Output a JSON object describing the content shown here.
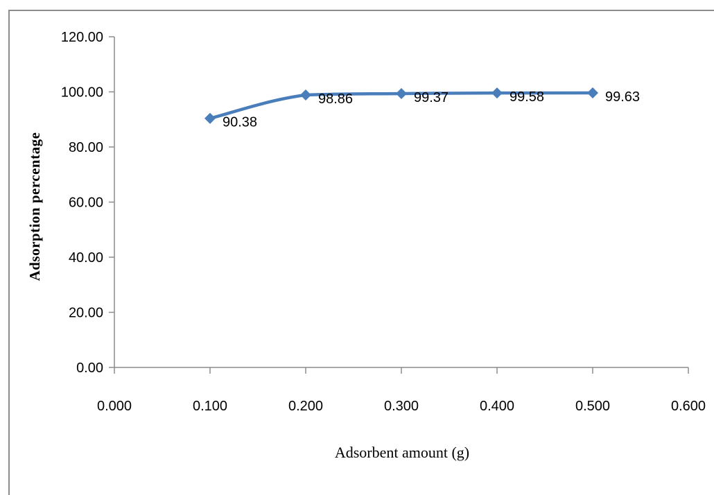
{
  "chart_data": {
    "type": "line",
    "title": "",
    "xlabel": "Adsorbent amount (g)",
    "ylabel": "Adsorption percentage",
    "x": [
      0.1,
      0.2,
      0.3,
      0.4,
      0.5
    ],
    "series": [
      {
        "values": [
          90.38,
          98.86,
          99.37,
          99.58,
          99.63
        ],
        "labels": [
          "90.38",
          "98.86",
          "99.37",
          "99.58",
          "99.63"
        ],
        "color": "#4a7ebb",
        "marker": "diamond",
        "smooth": true
      }
    ],
    "xlim": [
      0,
      0.6
    ],
    "ylim": [
      0,
      120
    ],
    "x_ticks": [
      "0.000",
      "0.100",
      "0.200",
      "0.300",
      "0.400",
      "0.500",
      "0.600"
    ],
    "y_ticks": [
      "0.00",
      "20.00",
      "40.00",
      "60.00",
      "80.00",
      "100.00",
      "120.00"
    ],
    "grid": false,
    "legend": "none"
  }
}
